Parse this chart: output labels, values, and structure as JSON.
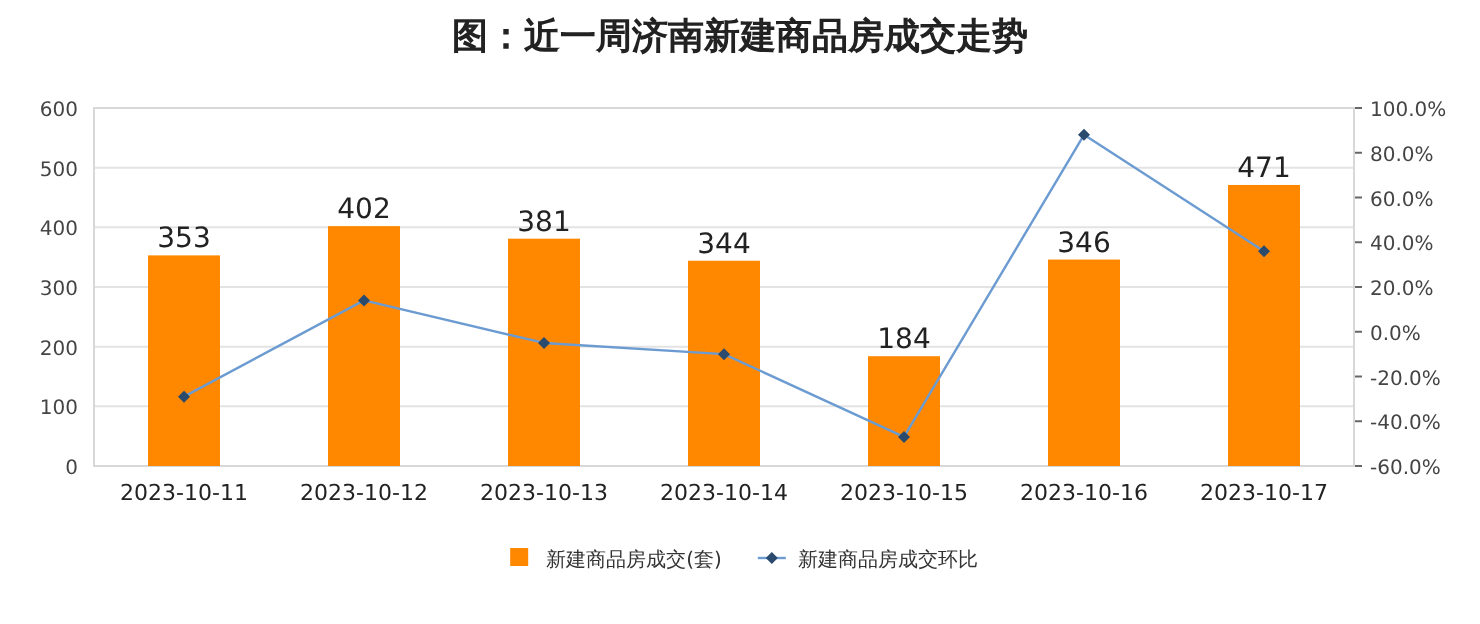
{
  "chart_data": {
    "type": "bar",
    "title": "图：近一周济南新建商品房成交走势",
    "categories": [
      "2023-10-11",
      "2023-10-12",
      "2023-10-13",
      "2023-10-14",
      "2023-10-15",
      "2023-10-16",
      "2023-10-17"
    ],
    "series": [
      {
        "name": "新建商品房成交(套)",
        "color": "#ff8800",
        "values": [
          353,
          402,
          381,
          344,
          184,
          346,
          471
        ],
        "value_labels": [
          "353",
          "402",
          "381",
          "344",
          "184",
          "346",
          "471"
        ]
      },
      {
        "name": "新建商品房成交环比",
        "type": "line",
        "axis": "y2",
        "color": "#6b9bd1",
        "values": [
          -29,
          14,
          -5,
          -10,
          -47,
          88,
          36
        ]
      }
    ],
    "ylim": [
      0,
      600
    ],
    "yticks": [
      0,
      100,
      200,
      300,
      400,
      500,
      600
    ],
    "y2lim": [
      -60,
      100
    ],
    "y2ticks": [
      {
        "value": -60,
        "label": "-60.0%"
      },
      {
        "value": -40,
        "label": "-40.0%"
      },
      {
        "value": -20,
        "label": "-20.0%"
      },
      {
        "value": 0,
        "label": "0.0%"
      },
      {
        "value": 20,
        "label": "20.0%"
      },
      {
        "value": 40,
        "label": "40.0%"
      },
      {
        "value": 60,
        "label": "60.0%"
      },
      {
        "value": 80,
        "label": "80.0%"
      },
      {
        "value": 100,
        "label": "100.0%"
      }
    ],
    "grid": "y",
    "legend": "bottom",
    "marker": "diamond",
    "line_style": "solid"
  }
}
